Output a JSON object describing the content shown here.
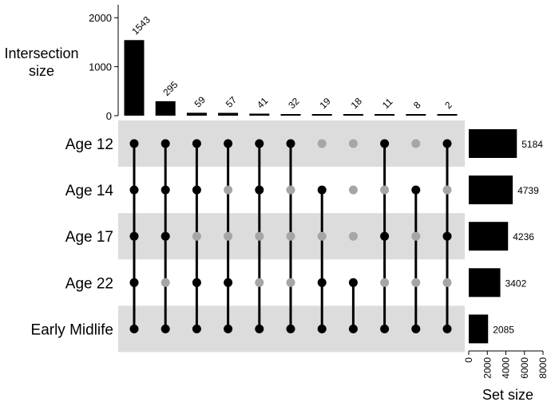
{
  "chart_data": {
    "type": "upset",
    "intersection_axis": {
      "label_line1": "Intersection",
      "label_line2": "size",
      "ticks": [
        0,
        1000,
        2000
      ],
      "ylim": [
        0,
        2150
      ]
    },
    "set_size_axis": {
      "label": "Set size",
      "ticks": [
        0,
        2000,
        4000,
        6000,
        8000
      ],
      "xlim": [
        0,
        8000
      ]
    },
    "sets": [
      {
        "name": "Age 12",
        "size": 5184
      },
      {
        "name": "Age 14",
        "size": 4739
      },
      {
        "name": "Age 17",
        "size": 4236
      },
      {
        "name": "Age 22",
        "size": 3402
      },
      {
        "name": "Early Midlife",
        "size": 2085
      }
    ],
    "intersections": [
      {
        "size": 1543,
        "members": [
          1,
          1,
          1,
          1,
          1
        ]
      },
      {
        "size": 295,
        "members": [
          1,
          1,
          1,
          0,
          1
        ]
      },
      {
        "size": 59,
        "members": [
          1,
          1,
          0,
          1,
          1
        ]
      },
      {
        "size": 57,
        "members": [
          1,
          0,
          0,
          1,
          1
        ]
      },
      {
        "size": 41,
        "members": [
          1,
          1,
          0,
          0,
          1
        ]
      },
      {
        "size": 32,
        "members": [
          1,
          0,
          0,
          0,
          1
        ]
      },
      {
        "size": 19,
        "members": [
          0,
          1,
          0,
          1,
          1
        ]
      },
      {
        "size": 18,
        "members": [
          0,
          0,
          0,
          1,
          1
        ]
      },
      {
        "size": 11,
        "members": [
          1,
          0,
          1,
          0,
          1
        ]
      },
      {
        "size": 8,
        "members": [
          0,
          1,
          0,
          0,
          1
        ]
      },
      {
        "size": 2,
        "members": [
          1,
          0,
          1,
          0,
          1
        ]
      }
    ],
    "colors": {
      "bar": "#000000",
      "active_dot": "#000000",
      "inactive_dot": "#a6a6a6",
      "stripe": "#dcdcdc"
    }
  }
}
